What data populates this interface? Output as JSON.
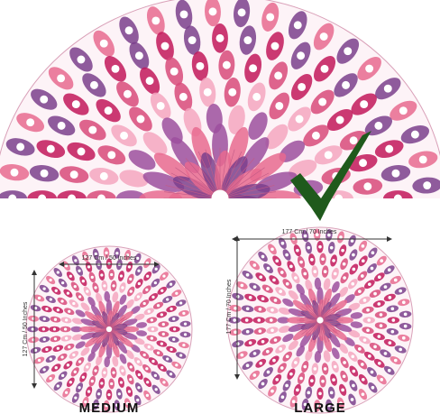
{
  "medium": {
    "width_label": "127 Cm / 50 Inches",
    "height_label": "127 Cm / 50 Inches",
    "title": "MEDIUM"
  },
  "large": {
    "width_label": "177 Cm / 70 Inches",
    "height_label": "177 Cm / 70 Inches",
    "title": "LARGE"
  }
}
